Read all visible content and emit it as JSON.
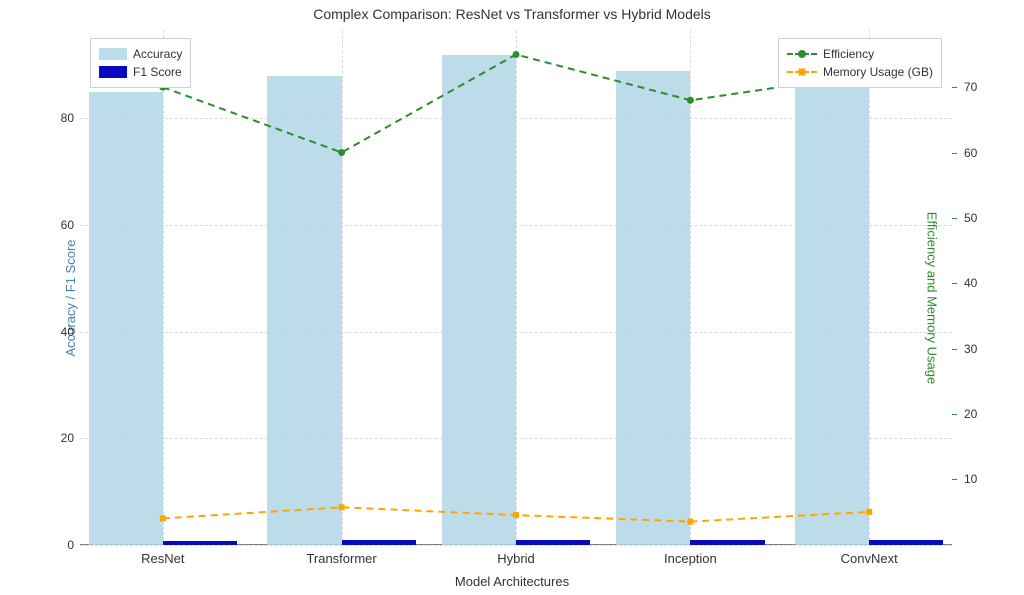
{
  "chart": {
    "title": "Complex Comparison: ResNet vs Transformer vs Hybrid Models",
    "xlabel": "Model Architectures",
    "ylabel_left": "Accuracy / F1 Score",
    "ylabel_right": "Efficiency and Memory Usage",
    "categories": [
      "ResNet",
      "Transformer",
      "Hybrid",
      "Inception",
      "ConvNext"
    ],
    "series": {
      "accuracy": {
        "label": "Accuracy",
        "type": "bar",
        "axis": "left",
        "values": [
          85,
          88,
          92,
          89,
          88
        ],
        "color": "#b0d6e6",
        "alpha": 0.85,
        "bar_width": 0.4
      },
      "f1": {
        "label": "F1 Score",
        "type": "bar",
        "axis": "left",
        "values": [
          0.83,
          0.86,
          0.9,
          0.87,
          0.86
        ],
        "color": "#0909bd",
        "bar_width": 0.4
      },
      "efficiency": {
        "label": "Efficiency",
        "type": "line",
        "axis": "right",
        "values": [
          70,
          60,
          75,
          68,
          72
        ],
        "color": "#2e8b2e",
        "linestyle": "dashed",
        "linewidth": 2,
        "marker": "circle",
        "markersize": 7
      },
      "memory": {
        "label": "Memory Usage (GB)",
        "type": "line",
        "axis": "right",
        "values": [
          4.0,
          5.7,
          4.5,
          3.5,
          5.0
        ],
        "color": "#ffa500",
        "linestyle": "dashed",
        "linewidth": 2,
        "marker": "square",
        "markersize": 6
      }
    },
    "y_left": {
      "min": 0,
      "max": 96.6,
      "ticks": [
        0,
        20,
        40,
        60,
        80
      ]
    },
    "y_right": {
      "min": -0.075,
      "max": 78.75,
      "ticks": [
        10,
        20,
        30,
        40,
        50,
        60,
        70
      ]
    },
    "x_positions": [
      0.095,
      0.3,
      0.5,
      0.7,
      0.905
    ],
    "bar_slot_width": 0.085,
    "background_color": "#ffffff",
    "grid_color": "#cccccc",
    "grid_alpha": 0.7,
    "title_fontsize": 14,
    "label_fontsize": 13,
    "tick_fontsize": 12,
    "legend_fontsize": 12,
    "ylabel_left_color": "#4682b4",
    "ylabel_right_color": "#2e8b2e",
    "legend_left": {
      "position": "upper-left"
    },
    "legend_right": {
      "position": "upper-right"
    }
  }
}
